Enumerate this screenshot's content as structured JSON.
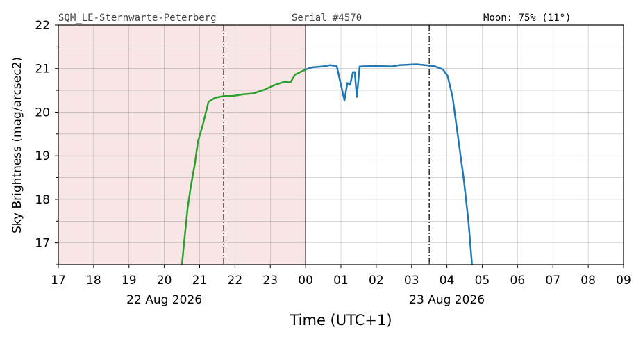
{
  "chart_data": {
    "type": "line",
    "header": [
      "SQM_LE-Sternwarte-Peterberg",
      "Serial #4570",
      "Moon: 75% (11°)"
    ],
    "ylabel": "Sky Brightness (mag/arcsec2)",
    "xlabel": "Time (UTC+1)",
    "xlim": [
      17,
      33
    ],
    "ylim": [
      16.5,
      22
    ],
    "xticks": [
      17,
      18,
      19,
      20,
      21,
      22,
      23,
      {
        "value": 24,
        "label": "00"
      },
      {
        "value": 25,
        "label": "01"
      },
      {
        "value": 26,
        "label": "02"
      },
      {
        "value": 27,
        "label": "03"
      },
      {
        "value": 28,
        "label": "04"
      },
      {
        "value": 29,
        "label": "05"
      },
      {
        "value": 30,
        "label": "06"
      },
      {
        "value": 31,
        "label": "07"
      },
      {
        "value": 32,
        "label": "08"
      },
      {
        "value": 33,
        "label": "09"
      }
    ],
    "date_labels": [
      {
        "value": 20,
        "label": "22 Aug 2026"
      },
      {
        "value": 28,
        "label": "23 Aug 2026"
      }
    ],
    "yticks": [
      17,
      18,
      19,
      20,
      21,
      22
    ],
    "yminorticks": [
      16.5,
      17.5,
      18.5,
      19.5,
      20.5,
      21.5
    ],
    "grid": true,
    "shade": [
      17,
      24
    ],
    "shade_color": "#f8e6e6",
    "midnight": 24,
    "markers": [
      21.68,
      27.5
    ],
    "series": [
      {
        "color": "#2ca02c",
        "x": [
          20.5,
          20.56,
          20.66,
          20.75,
          20.87,
          20.95,
          21.09,
          21.25,
          21.44,
          21.68,
          21.93,
          22.23,
          22.52,
          22.82,
          23.11,
          23.41,
          23.57,
          23.7,
          24.0
        ],
        "values": [
          16.5,
          17.0,
          17.8,
          18.29,
          18.84,
          19.32,
          19.71,
          20.24,
          20.33,
          20.37,
          20.37,
          20.41,
          20.43,
          20.51,
          20.62,
          20.7,
          20.68,
          20.86,
          20.98
        ]
      },
      {
        "color": "#1f77b4",
        "x": [
          24.0,
          24.2,
          24.49,
          24.69,
          24.88,
          24.98,
          25.1,
          25.18,
          25.26,
          25.34,
          25.39,
          25.45,
          25.53,
          25.96,
          26.45,
          26.65,
          27.14,
          27.63,
          27.89,
          28.02,
          28.16,
          28.32,
          28.48,
          28.61,
          28.71
        ],
        "values": [
          20.98,
          21.03,
          21.05,
          21.08,
          21.06,
          20.7,
          20.27,
          20.67,
          20.63,
          20.92,
          20.92,
          20.35,
          21.05,
          21.06,
          21.05,
          21.08,
          21.1,
          21.06,
          20.98,
          20.83,
          20.35,
          19.4,
          18.44,
          17.49,
          16.5
        ]
      }
    ]
  }
}
